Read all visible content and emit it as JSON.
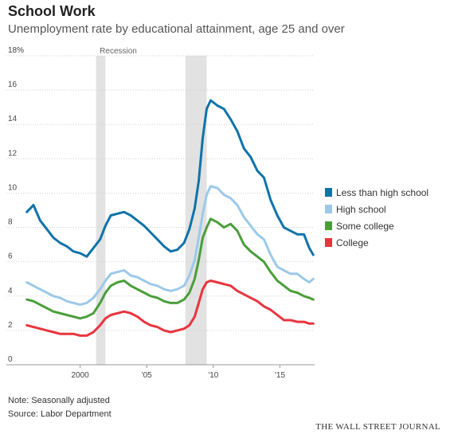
{
  "header": {
    "title": "School Work",
    "subtitle": "Unemployment rate by educational attainment, age 25 and over"
  },
  "footer": {
    "note": "Note: Seasonally adjusted",
    "source": "Source: Labor Department",
    "brand": "THE WALL STREET JOURNAL"
  },
  "colors": {
    "less_than_hs": "#0f73a8",
    "high_school": "#9cc9e8",
    "some_college": "#4a9e3a",
    "college": "#e8343e",
    "recession": "#e2e2e2",
    "grid": "#d0d0d0"
  },
  "chart_data": {
    "type": "line",
    "title": "School Work",
    "subtitle": "Unemployment rate by educational attainment, age 25 and over",
    "xlabel": "",
    "ylabel": "",
    "xlim": [
      1995.9,
      2017.6
    ],
    "ylim": [
      0,
      18
    ],
    "y_ticks": [
      0,
      2,
      4,
      6,
      8,
      10,
      12,
      14,
      16,
      18
    ],
    "y_tick_labels": [
      "0",
      "2",
      "4",
      "6",
      "8",
      "10",
      "12",
      "14",
      "16",
      "18%"
    ],
    "x_ticks": [
      2000,
      2005,
      2010,
      2015
    ],
    "x_tick_labels": [
      "2000",
      "'05",
      "'10",
      "'15"
    ],
    "grid": true,
    "legend_position": "right",
    "recessions": [
      {
        "start": 2001.2,
        "end": 2001.9,
        "label": "Recession"
      },
      {
        "start": 2007.9,
        "end": 2009.5,
        "label": ""
      }
    ],
    "series": [
      {
        "name": "Less than high school",
        "color": "#0f73a8",
        "points": [
          [
            1996.0,
            8.9
          ],
          [
            1996.5,
            9.3
          ],
          [
            1997.0,
            8.4
          ],
          [
            1997.5,
            7.9
          ],
          [
            1998.0,
            7.4
          ],
          [
            1998.5,
            7.1
          ],
          [
            1999.0,
            6.9
          ],
          [
            1999.5,
            6.6
          ],
          [
            2000.0,
            6.5
          ],
          [
            2000.5,
            6.3
          ],
          [
            2001.0,
            6.8
          ],
          [
            2001.5,
            7.3
          ],
          [
            2001.9,
            8.1
          ],
          [
            2002.3,
            8.7
          ],
          [
            2002.8,
            8.8
          ],
          [
            2003.3,
            8.9
          ],
          [
            2003.8,
            8.7
          ],
          [
            2004.3,
            8.4
          ],
          [
            2004.8,
            8.1
          ],
          [
            2005.3,
            7.7
          ],
          [
            2005.8,
            7.3
          ],
          [
            2006.3,
            6.9
          ],
          [
            2006.8,
            6.6
          ],
          [
            2007.3,
            6.7
          ],
          [
            2007.8,
            7.1
          ],
          [
            2008.2,
            7.9
          ],
          [
            2008.6,
            9.1
          ],
          [
            2008.9,
            10.7
          ],
          [
            2009.2,
            13.2
          ],
          [
            2009.5,
            14.9
          ],
          [
            2009.8,
            15.4
          ],
          [
            2010.3,
            15.1
          ],
          [
            2010.8,
            14.9
          ],
          [
            2011.3,
            14.3
          ],
          [
            2011.8,
            13.6
          ],
          [
            2012.3,
            12.6
          ],
          [
            2012.8,
            12.1
          ],
          [
            2013.3,
            11.3
          ],
          [
            2013.8,
            10.9
          ],
          [
            2014.3,
            9.6
          ],
          [
            2014.8,
            8.7
          ],
          [
            2015.3,
            8.0
          ],
          [
            2015.8,
            7.8
          ],
          [
            2016.3,
            7.6
          ],
          [
            2016.8,
            7.6
          ],
          [
            2017.2,
            6.8
          ],
          [
            2017.5,
            6.4
          ]
        ]
      },
      {
        "name": "High school",
        "color": "#9cc9e8",
        "points": [
          [
            1996.0,
            4.8
          ],
          [
            1996.5,
            4.6
          ],
          [
            1997.0,
            4.4
          ],
          [
            1997.5,
            4.2
          ],
          [
            1998.0,
            4.0
          ],
          [
            1998.5,
            3.9
          ],
          [
            1999.0,
            3.7
          ],
          [
            1999.5,
            3.6
          ],
          [
            2000.0,
            3.5
          ],
          [
            2000.5,
            3.6
          ],
          [
            2001.0,
            3.9
          ],
          [
            2001.5,
            4.4
          ],
          [
            2001.9,
            4.9
          ],
          [
            2002.3,
            5.3
          ],
          [
            2002.8,
            5.4
          ],
          [
            2003.3,
            5.5
          ],
          [
            2003.8,
            5.2
          ],
          [
            2004.3,
            5.1
          ],
          [
            2004.8,
            4.9
          ],
          [
            2005.3,
            4.7
          ],
          [
            2005.8,
            4.6
          ],
          [
            2006.3,
            4.4
          ],
          [
            2006.8,
            4.3
          ],
          [
            2007.3,
            4.4
          ],
          [
            2007.8,
            4.6
          ],
          [
            2008.2,
            5.2
          ],
          [
            2008.6,
            6.1
          ],
          [
            2008.9,
            7.4
          ],
          [
            2009.2,
            8.8
          ],
          [
            2009.5,
            9.9
          ],
          [
            2009.8,
            10.4
          ],
          [
            2010.3,
            10.3
          ],
          [
            2010.8,
            9.9
          ],
          [
            2011.3,
            9.7
          ],
          [
            2011.8,
            9.3
          ],
          [
            2012.3,
            8.6
          ],
          [
            2012.8,
            8.1
          ],
          [
            2013.3,
            7.6
          ],
          [
            2013.8,
            7.3
          ],
          [
            2014.3,
            6.4
          ],
          [
            2014.8,
            5.7
          ],
          [
            2015.3,
            5.5
          ],
          [
            2015.8,
            5.3
          ],
          [
            2016.3,
            5.3
          ],
          [
            2016.8,
            5.0
          ],
          [
            2017.2,
            4.8
          ],
          [
            2017.5,
            5.0
          ]
        ]
      },
      {
        "name": "Some college",
        "color": "#4a9e3a",
        "points": [
          [
            1996.0,
            3.8
          ],
          [
            1996.5,
            3.7
          ],
          [
            1997.0,
            3.5
          ],
          [
            1997.5,
            3.3
          ],
          [
            1998.0,
            3.1
          ],
          [
            1998.5,
            3.0
          ],
          [
            1999.0,
            2.9
          ],
          [
            1999.5,
            2.8
          ],
          [
            2000.0,
            2.7
          ],
          [
            2000.5,
            2.8
          ],
          [
            2001.0,
            3.0
          ],
          [
            2001.5,
            3.6
          ],
          [
            2001.9,
            4.2
          ],
          [
            2002.3,
            4.6
          ],
          [
            2002.8,
            4.8
          ],
          [
            2003.3,
            4.9
          ],
          [
            2003.8,
            4.6
          ],
          [
            2004.3,
            4.4
          ],
          [
            2004.8,
            4.2
          ],
          [
            2005.3,
            4.0
          ],
          [
            2005.8,
            3.9
          ],
          [
            2006.3,
            3.7
          ],
          [
            2006.8,
            3.6
          ],
          [
            2007.3,
            3.6
          ],
          [
            2007.8,
            3.8
          ],
          [
            2008.2,
            4.2
          ],
          [
            2008.6,
            5.0
          ],
          [
            2008.9,
            6.1
          ],
          [
            2009.2,
            7.4
          ],
          [
            2009.5,
            8.0
          ],
          [
            2009.8,
            8.5
          ],
          [
            2010.3,
            8.3
          ],
          [
            2010.8,
            8.0
          ],
          [
            2011.3,
            8.2
          ],
          [
            2011.8,
            7.8
          ],
          [
            2012.3,
            7.0
          ],
          [
            2012.8,
            6.6
          ],
          [
            2013.3,
            6.3
          ],
          [
            2013.8,
            6.0
          ],
          [
            2014.3,
            5.4
          ],
          [
            2014.8,
            4.9
          ],
          [
            2015.3,
            4.6
          ],
          [
            2015.8,
            4.3
          ],
          [
            2016.3,
            4.2
          ],
          [
            2016.8,
            4.0
          ],
          [
            2017.2,
            3.9
          ],
          [
            2017.5,
            3.8
          ]
        ]
      },
      {
        "name": "College",
        "color": "#e8343e",
        "points": [
          [
            1996.0,
            2.3
          ],
          [
            1996.5,
            2.2
          ],
          [
            1997.0,
            2.1
          ],
          [
            1997.5,
            2.0
          ],
          [
            1998.0,
            1.9
          ],
          [
            1998.5,
            1.8
          ],
          [
            1999.0,
            1.8
          ],
          [
            1999.5,
            1.8
          ],
          [
            2000.0,
            1.7
          ],
          [
            2000.5,
            1.7
          ],
          [
            2001.0,
            1.9
          ],
          [
            2001.5,
            2.3
          ],
          [
            2001.9,
            2.7
          ],
          [
            2002.3,
            2.9
          ],
          [
            2002.8,
            3.0
          ],
          [
            2003.3,
            3.1
          ],
          [
            2003.8,
            3.0
          ],
          [
            2004.3,
            2.8
          ],
          [
            2004.8,
            2.5
          ],
          [
            2005.3,
            2.3
          ],
          [
            2005.8,
            2.2
          ],
          [
            2006.3,
            2.0
          ],
          [
            2006.8,
            1.9
          ],
          [
            2007.3,
            2.0
          ],
          [
            2007.8,
            2.1
          ],
          [
            2008.2,
            2.3
          ],
          [
            2008.6,
            2.8
          ],
          [
            2008.9,
            3.6
          ],
          [
            2009.2,
            4.4
          ],
          [
            2009.5,
            4.8
          ],
          [
            2009.8,
            4.9
          ],
          [
            2010.3,
            4.8
          ],
          [
            2010.8,
            4.7
          ],
          [
            2011.3,
            4.6
          ],
          [
            2011.8,
            4.3
          ],
          [
            2012.3,
            4.1
          ],
          [
            2012.8,
            3.9
          ],
          [
            2013.3,
            3.7
          ],
          [
            2013.8,
            3.4
          ],
          [
            2014.3,
            3.2
          ],
          [
            2014.8,
            2.9
          ],
          [
            2015.3,
            2.6
          ],
          [
            2015.8,
            2.6
          ],
          [
            2016.3,
            2.5
          ],
          [
            2016.8,
            2.5
          ],
          [
            2017.2,
            2.4
          ],
          [
            2017.5,
            2.4
          ]
        ]
      }
    ]
  }
}
